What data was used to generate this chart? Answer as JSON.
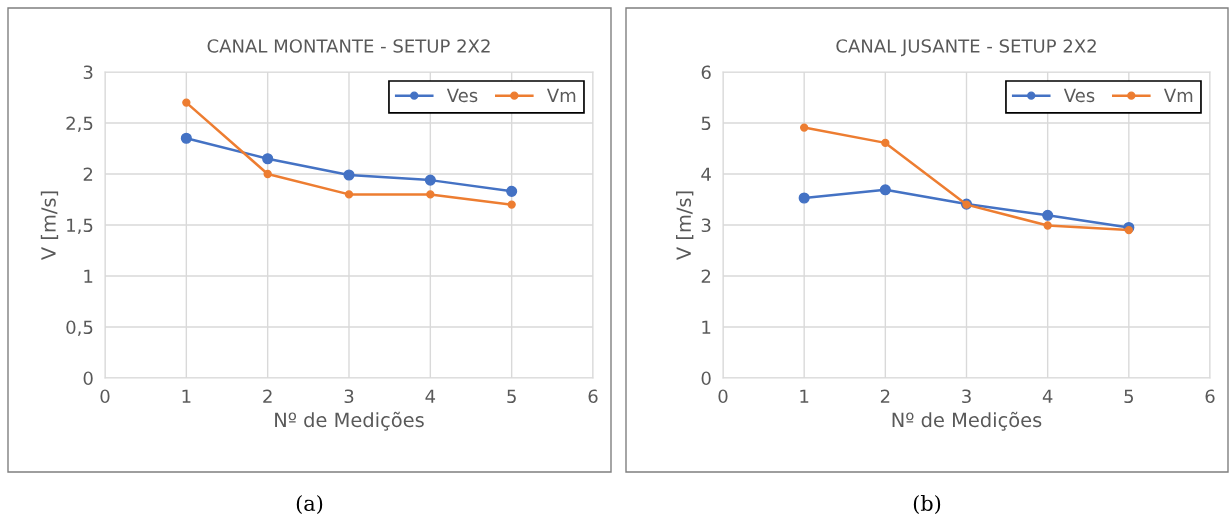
{
  "chart_data": [
    {
      "type": "line",
      "title": "CANAL MONTANTE - SETUP 2X2",
      "xlabel": "Nº de Medições",
      "ylabel": "V [m/s]",
      "x": [
        1,
        2,
        3,
        4,
        5
      ],
      "series": [
        {
          "name": "Ves",
          "color": "#4472c4",
          "values": [
            2.35,
            2.15,
            1.99,
            1.94,
            1.83
          ]
        },
        {
          "name": "Vm",
          "color": "#ed7d31",
          "values": [
            2.7,
            2.0,
            1.8,
            1.8,
            1.7
          ]
        }
      ],
      "xlim": [
        0,
        6
      ],
      "xticks": [
        0,
        1,
        2,
        3,
        4,
        5,
        6
      ],
      "ylim": [
        0,
        3
      ],
      "yticks": [
        0,
        {
          "value": 0.5,
          "label": "0,5"
        },
        1,
        {
          "value": 1.5,
          "label": "1,5"
        },
        2,
        {
          "value": 2.5,
          "label": "2,5"
        },
        3
      ],
      "grid": true,
      "legend": "top right",
      "marker": "circle",
      "line_style": "solid",
      "annotations": [
        "(a)"
      ]
    },
    {
      "type": "line",
      "title": "CANAL JUSANTE - SETUP 2X2",
      "xlabel": "Nº de Medições",
      "ylabel": "V [m/s]",
      "x": [
        1,
        2,
        3,
        4,
        5
      ],
      "series": [
        {
          "name": "Ves",
          "color": "#4472c4",
          "values": [
            3.53,
            3.69,
            3.41,
            3.19,
            2.95
          ]
        },
        {
          "name": "Vm",
          "color": "#ed7d31",
          "values": [
            4.91,
            4.61,
            3.4,
            2.99,
            2.9
          ]
        }
      ],
      "xlim": [
        0,
        6
      ],
      "xticks": [
        0,
        1,
        2,
        3,
        4,
        5,
        6
      ],
      "ylim": [
        0,
        6
      ],
      "yticks": [
        0,
        1,
        2,
        3,
        4,
        5,
        6
      ],
      "grid": true,
      "legend": "top right",
      "marker": "circle",
      "line_style": "solid",
      "annotations": [
        "(b)"
      ]
    }
  ]
}
